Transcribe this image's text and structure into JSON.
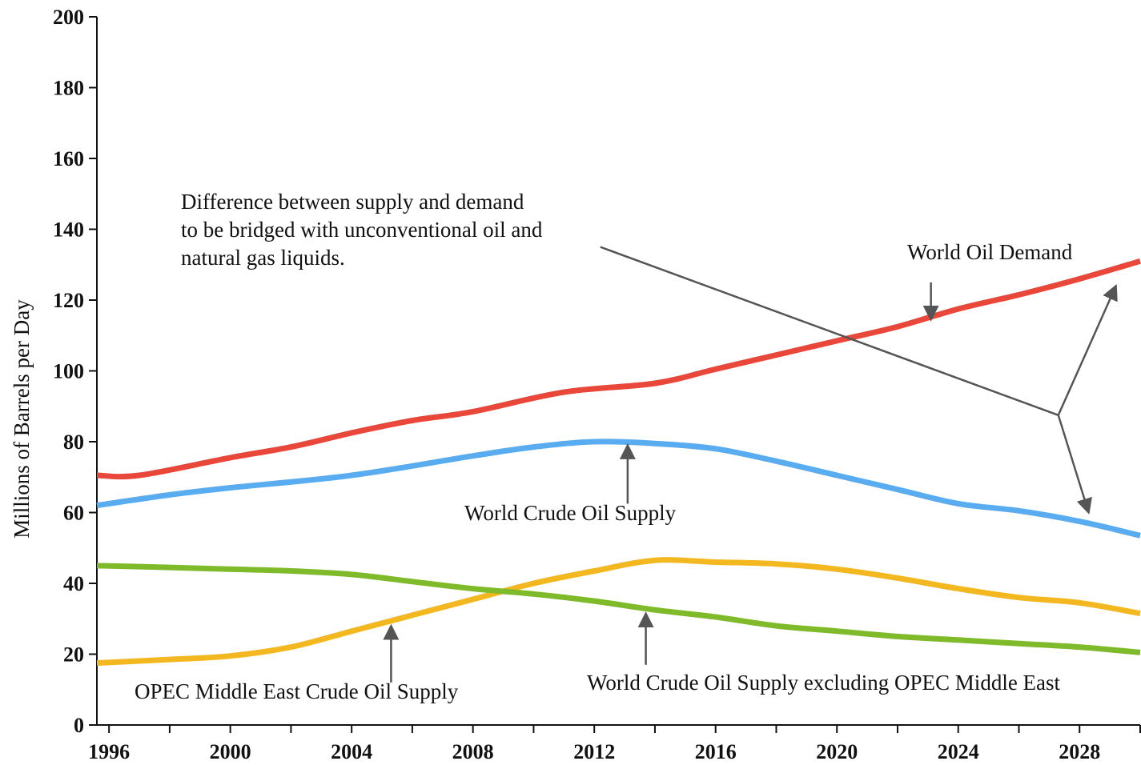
{
  "chart_data": {
    "type": "line",
    "title": "",
    "xlabel": "",
    "ylabel": "Millions of Barrels per Day",
    "xlim": [
      1995.6,
      2030
    ],
    "ylim": [
      0,
      200
    ],
    "x_ticks": [
      1996,
      2000,
      2004,
      2008,
      2012,
      2016,
      2020,
      2024,
      2028
    ],
    "y_ticks": [
      0,
      20,
      40,
      60,
      80,
      100,
      120,
      140,
      160,
      180,
      200
    ],
    "grid": false,
    "legend": "none",
    "series": [
      {
        "name": "World Oil Demand",
        "color": "#e8473a",
        "points": [
          [
            1995.6,
            70.5
          ],
          [
            1997,
            70.5
          ],
          [
            2000,
            75.5
          ],
          [
            2002,
            78.5
          ],
          [
            2004,
            82.5
          ],
          [
            2006,
            86
          ],
          [
            2008,
            88.5
          ],
          [
            2011,
            94
          ],
          [
            2014,
            96.5
          ],
          [
            2016,
            100.5
          ],
          [
            2018,
            104.5
          ],
          [
            2020,
            108.5
          ],
          [
            2022,
            112.5
          ],
          [
            2024,
            117.5
          ],
          [
            2026,
            121.5
          ],
          [
            2028,
            126
          ],
          [
            2030,
            131
          ]
        ]
      },
      {
        "name": "World Crude Oil Supply",
        "color": "#5aacf0",
        "points": [
          [
            1995.6,
            62
          ],
          [
            1998,
            65
          ],
          [
            2000,
            67
          ],
          [
            2004,
            70.5
          ],
          [
            2008,
            76
          ],
          [
            2010,
            78.5
          ],
          [
            2012,
            80
          ],
          [
            2014,
            79.5
          ],
          [
            2016,
            78
          ],
          [
            2018,
            74.5
          ],
          [
            2020,
            70.5
          ],
          [
            2022,
            66.5
          ],
          [
            2024,
            62.5
          ],
          [
            2026,
            60.5
          ],
          [
            2028,
            57.5
          ],
          [
            2030,
            53.5
          ]
        ]
      },
      {
        "name": "OPEC Middle East Crude Oil Supply",
        "color": "#f3b71f",
        "points": [
          [
            1995.6,
            17.5
          ],
          [
            1998,
            18.5
          ],
          [
            2000,
            19.5
          ],
          [
            2002,
            22
          ],
          [
            2004,
            26.5
          ],
          [
            2006,
            31
          ],
          [
            2008,
            35.5
          ],
          [
            2010,
            40
          ],
          [
            2012,
            43.5
          ],
          [
            2014,
            46.5
          ],
          [
            2016,
            46
          ],
          [
            2018,
            45.5
          ],
          [
            2020,
            44
          ],
          [
            2022,
            41.5
          ],
          [
            2024,
            38.5
          ],
          [
            2026,
            36
          ],
          [
            2028,
            34.5
          ],
          [
            2030,
            31.5
          ]
        ]
      },
      {
        "name": "World Crude Oil Supply excluding OPEC Middle East",
        "color": "#7fba2a",
        "points": [
          [
            1995.6,
            45
          ],
          [
            1998,
            44.5
          ],
          [
            2000,
            44
          ],
          [
            2002,
            43.5
          ],
          [
            2004,
            42.5
          ],
          [
            2006,
            40.5
          ],
          [
            2008,
            38.5
          ],
          [
            2010,
            37
          ],
          [
            2012,
            35
          ],
          [
            2014,
            32.5
          ],
          [
            2016,
            30.5
          ],
          [
            2018,
            28
          ],
          [
            2020,
            26.5
          ],
          [
            2022,
            25
          ],
          [
            2024,
            24
          ],
          [
            2026,
            23
          ],
          [
            2028,
            22
          ],
          [
            2030,
            20.5
          ]
        ]
      }
    ],
    "annotations": {
      "gap_note": [
        "Difference between supply and demand",
        "to be bridged with unconventional oil and",
        "natural gas liquids."
      ],
      "demand_label": "World Oil Demand",
      "crude_supply_label": "World Crude Oil Supply",
      "opec_label": "OPEC Middle East Crude Oil Supply",
      "excl_opec_label": "World Crude Oil Supply excluding OPEC Middle East"
    },
    "pointers": [
      {
        "name": "demand-pointer",
        "from": [
          2023.1,
          125
        ],
        "to": [
          2023.1,
          114.5
        ]
      },
      {
        "name": "crude-supply-pointer",
        "from": [
          2013.1,
          62.5
        ],
        "to": [
          2013.1,
          79
        ]
      },
      {
        "name": "opec-pointer",
        "from": [
          2005.3,
          12
        ],
        "to": [
          2005.3,
          28
        ]
      },
      {
        "name": "excl-opec-pointer",
        "from": [
          2013.7,
          17
        ],
        "to": [
          2013.7,
          31.5
        ]
      },
      {
        "name": "gap-to-demand-pointer",
        "from": [
          2027.3,
          87.5
        ],
        "to": [
          2029.2,
          124
        ]
      },
      {
        "name": "gap-to-supply-pointer",
        "from": [
          2027.3,
          87.5
        ],
        "to": [
          2028.3,
          60
        ]
      }
    ],
    "gap_leader_line": [
      [
        2012.2,
        135
      ],
      [
        2027.3,
        87.5
      ]
    ]
  }
}
